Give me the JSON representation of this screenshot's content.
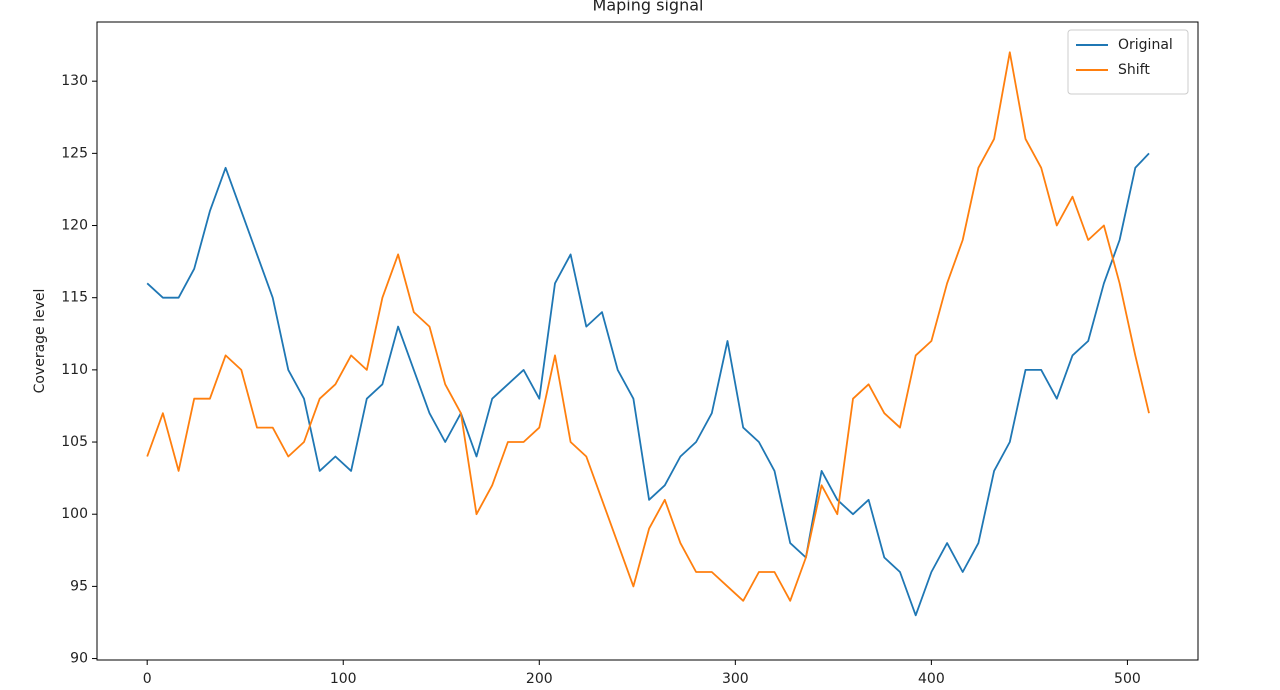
{
  "chart_data": {
    "type": "line",
    "title": "Maping signal",
    "ylabel": "Coverage level",
    "x": [
      0,
      8,
      16,
      24,
      32,
      40,
      48,
      56,
      64,
      72,
      80,
      88,
      96,
      104,
      112,
      120,
      128,
      136,
      144,
      152,
      160,
      168,
      176,
      184,
      192,
      200,
      208,
      216,
      224,
      232,
      240,
      248,
      256,
      264,
      272,
      280,
      288,
      296,
      304,
      312,
      320,
      328,
      336,
      344,
      352,
      360,
      368,
      376,
      384,
      392,
      400,
      408,
      416,
      424,
      432,
      440,
      448,
      456,
      464,
      472,
      480,
      488,
      496,
      504,
      511
    ],
    "series": [
      {
        "name": "Original",
        "color": "#1f77b4",
        "values": [
          116,
          115,
          115,
          117,
          121,
          124,
          121,
          118,
          115,
          110,
          108,
          103,
          104,
          103,
          108,
          109,
          113,
          110,
          107,
          105,
          107,
          104,
          108,
          109,
          110,
          108,
          116,
          118,
          113,
          114,
          110,
          108,
          101,
          102,
          104,
          105,
          107,
          112,
          106,
          105,
          103,
          98,
          97,
          103,
          101,
          100,
          101,
          97,
          96,
          93,
          96,
          98,
          96,
          98,
          103,
          105,
          110,
          110,
          108,
          111,
          112,
          116,
          119,
          124,
          125
        ]
      },
      {
        "name": "Shift",
        "color": "#ff7f0e",
        "values": [
          104,
          107,
          103,
          108,
          108,
          111,
          110,
          106,
          106,
          104,
          105,
          108,
          109,
          111,
          110,
          115,
          118,
          114,
          113,
          109,
          107,
          100,
          102,
          105,
          105,
          106,
          111,
          105,
          104,
          101,
          98,
          95,
          99,
          101,
          98,
          96,
          96,
          95,
          94,
          96,
          96,
          94,
          97,
          102,
          100,
          108,
          109,
          107,
          106,
          111,
          112,
          116,
          119,
          124,
          126,
          132,
          126,
          124,
          120,
          122,
          119,
          120,
          116,
          111,
          107
        ]
      }
    ],
    "xlim": [
      -25.6,
      536
    ],
    "ylim": [
      89.9,
      134.1
    ],
    "xticks": [
      0,
      100,
      200,
      300,
      400,
      500
    ],
    "yticks": [
      90,
      95,
      100,
      105,
      110,
      115,
      120,
      125,
      130
    ],
    "legend": "upper right"
  }
}
